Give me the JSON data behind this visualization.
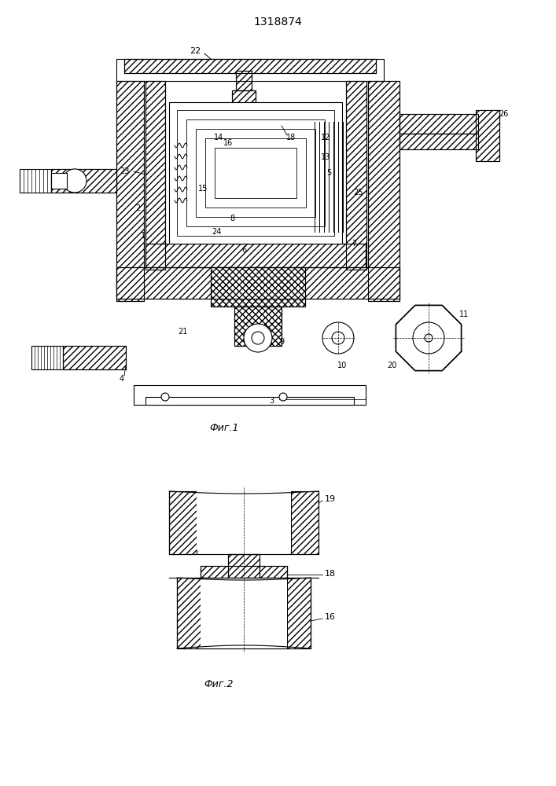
{
  "title": "1318874",
  "fig1_caption": "Фиг.1",
  "fig2_caption": "Фиг.2",
  "bg_color": "#ffffff",
  "line_color": "#000000",
  "hatch_color": "#000000",
  "fig_width": 7.07,
  "fig_height": 10.0,
  "dpi": 100
}
